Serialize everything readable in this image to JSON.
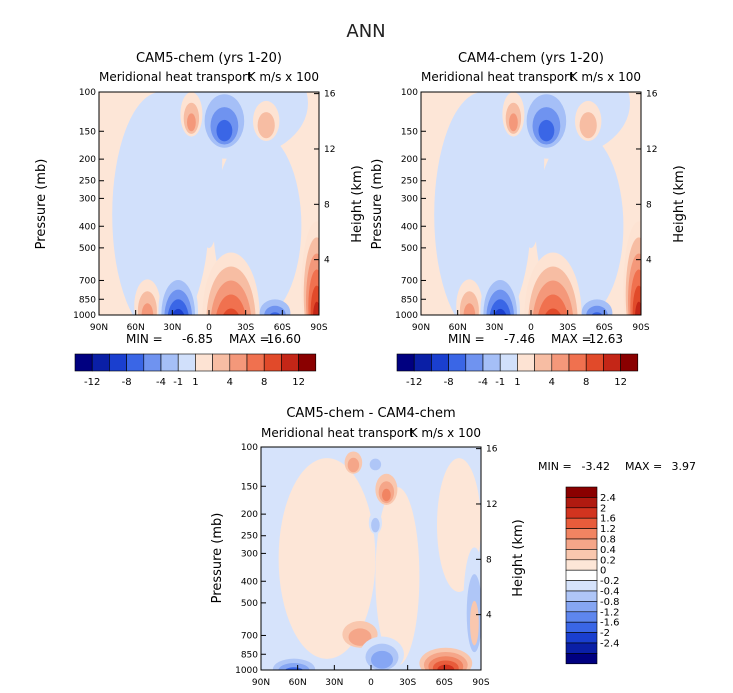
{
  "title": "ANN",
  "colors": {
    "neg": [
      "#000080",
      "#0a1fa6",
      "#1a3fcf",
      "#3a66e6",
      "#6f93f0",
      "#a5bff7",
      "#d1e0fb"
    ],
    "pos": [
      "#fde3d3",
      "#f7bda3",
      "#f4987a",
      "#f0714f",
      "#e14a2a",
      "#c42617",
      "#8a0000"
    ],
    "diff": [
      "#000080",
      "#0a1fa6",
      "#1a3fcf",
      "#3a66e6",
      "#5e86ee",
      "#86a6f3",
      "#afc6f7",
      "#d6e3fb",
      "#ffffff",
      "#fde6d7",
      "#f9c7ae",
      "#f5a689",
      "#f18462",
      "#e85c3b",
      "#d2341f",
      "#b01a10",
      "#8a0000"
    ]
  },
  "axes_common": {
    "ylabel_left": "Pressure (mb)",
    "ylabel_right": "Height (km)",
    "x_ticks": [
      "90N",
      "60N",
      "30N",
      "0",
      "30S",
      "60S",
      "90S"
    ],
    "p_ticks": [
      "100",
      "150",
      "200",
      "250",
      "300",
      "400",
      "500",
      "700",
      "850",
      "1000"
    ],
    "p_values": [
      100,
      150,
      200,
      250,
      300,
      400,
      500,
      700,
      850,
      1000
    ],
    "z_ticks": [
      "16",
      "12",
      "8",
      "4"
    ],
    "z_values": [
      16,
      12,
      8,
      4
    ]
  },
  "chart_data": [
    {
      "type": "heatmap",
      "title": "CAM5-chem (yrs 1-20)",
      "subtitle": "Meridional heat transport",
      "units": "K m/s x 100",
      "stats": {
        "min_label": "MIN =",
        "min": "-6.85",
        "max_label": "MAX =",
        "max": "16.60"
      },
      "min_value": -6.85,
      "max_value": 16.6,
      "colorbar_labels": [
        "-12",
        "-8",
        "-4",
        "-1",
        "1",
        "4",
        "8",
        "12"
      ],
      "colorbar_levels": [
        -12,
        -10,
        -8,
        -6,
        -4,
        -2,
        -1,
        1,
        2,
        4,
        6,
        8,
        10,
        12
      ]
    },
    {
      "type": "heatmap",
      "title": "CAM4-chem (yrs 1-20)",
      "subtitle": "Meridional heat transport",
      "units": "K m/s x 100",
      "stats": {
        "min_label": "MIN =",
        "min": "-7.46",
        "max_label": "MAX =",
        "max": "12.63"
      },
      "min_value": -7.46,
      "max_value": 12.63,
      "colorbar_labels": [
        "-12",
        "-8",
        "-4",
        "-1",
        "1",
        "4",
        "8",
        "12"
      ],
      "colorbar_levels": [
        -12,
        -10,
        -8,
        -6,
        -4,
        -2,
        -1,
        1,
        2,
        4,
        6,
        8,
        10,
        12
      ]
    },
    {
      "type": "heatmap",
      "title": "CAM5-chem - CAM4-chem",
      "subtitle": "Meridional heat transport",
      "units": "K m/s x 100",
      "stats": {
        "min_label": "MIN =",
        "min": "-3.42",
        "max_label": "MAX =",
        "max": "3.97"
      },
      "min_value": -3.42,
      "max_value": 3.97,
      "colorbar_labels": [
        "2.4",
        "2",
        "1.6",
        "1.2",
        "0.8",
        "0.4",
        "0.2",
        "0",
        "-0.2",
        "-0.4",
        "-0.8",
        "-1.2",
        "-1.6",
        "-2",
        "-2.4"
      ],
      "colorbar_levels": [
        -2.4,
        -2,
        -1.6,
        -1.2,
        -0.8,
        -0.4,
        -0.2,
        0,
        0.2,
        0.4,
        0.8,
        1.2,
        1.6,
        2,
        2.4
      ]
    }
  ]
}
